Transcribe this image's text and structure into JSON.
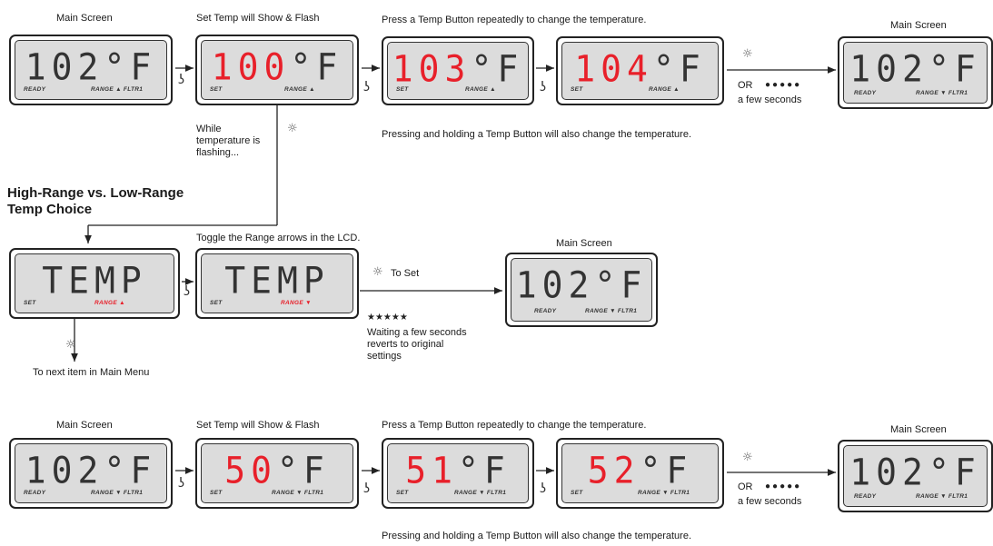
{
  "row1": {
    "captions": {
      "main1": "Main Screen",
      "set_flash": "Set Temp will Show & Flash",
      "press": "Press a Temp Button repeatedly to change the temperature.",
      "main2": "Main Screen",
      "holding": "Pressing and holding a Temp Button will also change the temperature.",
      "while_flashing": "While temperature is flashing..."
    },
    "or_label": "OR",
    "few_seconds": "a few seconds",
    "dots": "●●●●●",
    "lcds": [
      {
        "value": "102",
        "unit": "°F",
        "color": "dark",
        "left": "READY",
        "mid": "RANGE ▲ FLTR1"
      },
      {
        "value": "100",
        "unit": "°F",
        "color": "red",
        "left": "SET",
        "mid": "RANGE ▲"
      },
      {
        "value": "103",
        "unit": "°F",
        "color": "red",
        "left": "SET",
        "mid": "RANGE ▲"
      },
      {
        "value": "104",
        "unit": "°F",
        "color": "red",
        "left": "SET",
        "mid": "RANGE ▲"
      },
      {
        "value": "102",
        "unit": "°F",
        "color": "dark",
        "left": "READY",
        "mid": "RANGE ▼ FLTR1"
      }
    ]
  },
  "section_heading": "High-Range vs. Low-Range Temp Choice",
  "row2": {
    "captions": {
      "toggle": "Toggle the Range arrows in the LCD.",
      "main": "Main Screen",
      "to_set": "To Set",
      "stars": "★★★★★",
      "waiting": "Waiting a few seconds reverts to original settings",
      "next_item": "To next item in Main Menu"
    },
    "lcds": [
      {
        "value": "TEMP",
        "unit": "",
        "color": "dark",
        "left": "SET",
        "mid": "RANGE ▲",
        "mid_red": true
      },
      {
        "value": "TEMP",
        "unit": "",
        "color": "dark",
        "left": "SET",
        "mid": "RANGE ▼",
        "mid_red": true
      },
      {
        "value": "102",
        "unit": "°F",
        "color": "dark",
        "left": "READY",
        "mid": "RANGE ▼ FLTR1"
      }
    ]
  },
  "row3": {
    "captions": {
      "main1": "Main Screen",
      "set_flash": "Set Temp will Show & Flash",
      "press": "Press a Temp Button repeatedly to change the temperature.",
      "main2": "Main Screen",
      "holding": "Pressing and holding a Temp Button will also change the temperature."
    },
    "or_label": "OR",
    "few_seconds": "a few seconds",
    "dots": "●●●●●",
    "lcds": [
      {
        "value": "102",
        "unit": "°F",
        "color": "dark",
        "left": "READY",
        "mid": "RANGE ▼ FLTR1"
      },
      {
        "value": "50",
        "unit": "°F",
        "color": "red",
        "left": "SET",
        "mid": "RANGE ▼ FLTR1"
      },
      {
        "value": "51",
        "unit": "°F",
        "color": "red",
        "left": "SET",
        "mid": "RANGE ▼ FLTR1"
      },
      {
        "value": "52",
        "unit": "°F",
        "color": "red",
        "left": "SET",
        "mid": "RANGE ▼ FLTR1"
      },
      {
        "value": "102",
        "unit": "°F",
        "color": "dark",
        "left": "READY",
        "mid": "RANGE ▼ FLTR1"
      }
    ]
  },
  "colors": {
    "red": "#e8202a",
    "lcd_bg": "#dcdcdc",
    "line": "#222222"
  },
  "icons": {
    "hand": "hand-press-icon",
    "sun": "button-press-icon"
  }
}
